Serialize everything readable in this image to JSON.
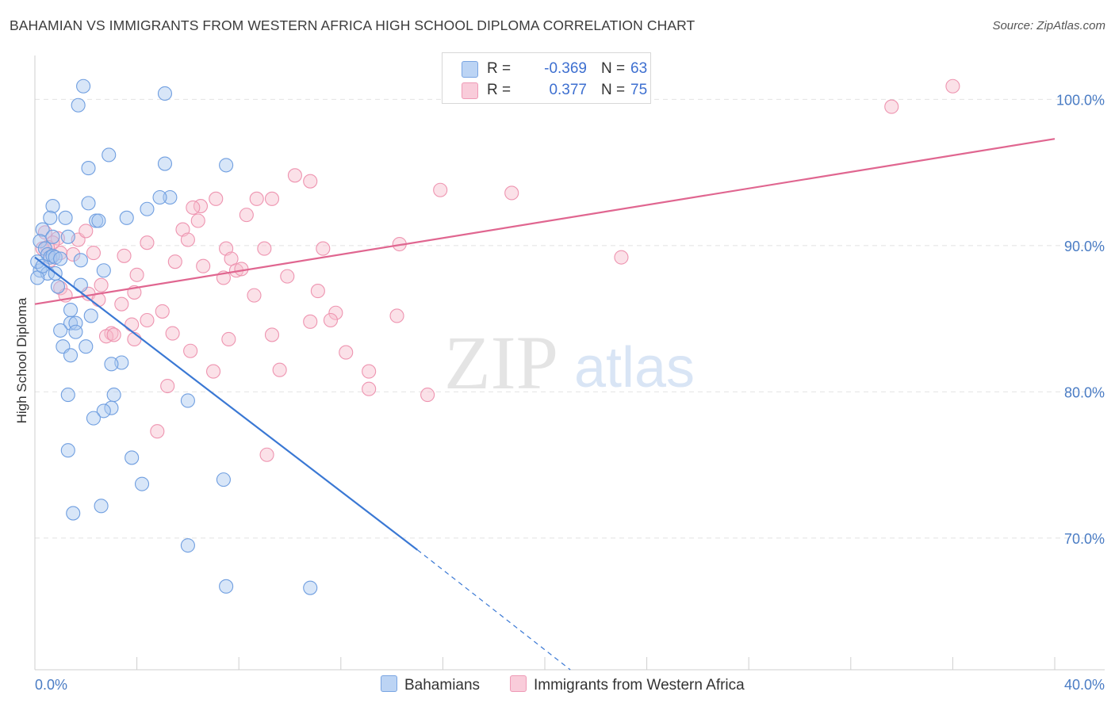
{
  "header": {
    "title": "BAHAMIAN VS IMMIGRANTS FROM WESTERN AFRICA HIGH SCHOOL DIPLOMA CORRELATION CHART",
    "source": "Source: ZipAtlas.com"
  },
  "watermark": {
    "zip": "ZIP",
    "atlas": "atlas"
  },
  "legend_top": [
    {
      "r_label": "R =",
      "r_value": "-0.369",
      "n_label": "N =",
      "n_value": "63"
    },
    {
      "r_label": "R =",
      "r_value": "0.377",
      "n_label": "N =",
      "n_value": "75"
    }
  ],
  "legend_bottom": {
    "series_a": "Bahamians",
    "series_b": "Immigrants from Western Africa"
  },
  "colors": {
    "blue_fill": "#a9c8f0",
    "blue_stroke": "#6f9ee0",
    "blue_line": "#3a78d4",
    "pink_fill": "#f6bccd",
    "pink_stroke": "#ee94b0",
    "pink_line": "#e06690",
    "tick_text": "#4a7cc4",
    "grid": "#e2e2e2"
  },
  "chart_data": {
    "type": "scatter",
    "title": "BAHAMIAN VS IMMIGRANTS FROM WESTERN AFRICA HIGH SCHOOL DIPLOMA CORRELATION CHART",
    "xlabel": "",
    "ylabel": "High School Diploma",
    "xlim": [
      0,
      40
    ],
    "ylim": [
      61,
      103
    ],
    "x_ticks": [
      "0.0%",
      "40.0%"
    ],
    "y_ticks": [
      {
        "value": 100,
        "label": "100.0%"
      },
      {
        "value": 90,
        "label": "90.0%"
      },
      {
        "value": 80,
        "label": "80.0%"
      },
      {
        "value": 70,
        "label": "70.0%"
      }
    ],
    "grid": "horizontal dashed",
    "legend": "top-center and bottom",
    "series": [
      {
        "name": "Bahamians",
        "color": "#a9c8f0",
        "points": [
          [
            1.9,
            100.9
          ],
          [
            5.1,
            100.4
          ],
          [
            1.7,
            99.6
          ],
          [
            2.9,
            96.2
          ],
          [
            2.1,
            95.3
          ],
          [
            5.1,
            95.6
          ],
          [
            7.5,
            95.5
          ],
          [
            5.3,
            93.3
          ],
          [
            4.9,
            93.3
          ],
          [
            2.1,
            92.9
          ],
          [
            0.7,
            92.7
          ],
          [
            4.4,
            92.5
          ],
          [
            0.6,
            91.9
          ],
          [
            1.2,
            91.9
          ],
          [
            3.6,
            91.9
          ],
          [
            2.4,
            91.7
          ],
          [
            2.5,
            91.7
          ],
          [
            0.3,
            91.1
          ],
          [
            0.2,
            90.3
          ],
          [
            0.7,
            90.6
          ],
          [
            1.3,
            90.6
          ],
          [
            0.4,
            89.8
          ],
          [
            0.5,
            89.4
          ],
          [
            0.6,
            89.2
          ],
          [
            0.7,
            89.3
          ],
          [
            0.8,
            89.2
          ],
          [
            1.0,
            89.1
          ],
          [
            1.8,
            89.0
          ],
          [
            0.2,
            88.3
          ],
          [
            0.5,
            88.1
          ],
          [
            0.8,
            88.1
          ],
          [
            2.7,
            88.3
          ],
          [
            0.1,
            87.8
          ],
          [
            0.9,
            87.2
          ],
          [
            1.8,
            87.3
          ],
          [
            1.4,
            85.6
          ],
          [
            2.2,
            85.2
          ],
          [
            1.4,
            84.7
          ],
          [
            1.6,
            84.7
          ],
          [
            1.0,
            84.2
          ],
          [
            1.6,
            84.1
          ],
          [
            1.1,
            83.1
          ],
          [
            2.0,
            83.1
          ],
          [
            1.4,
            82.5
          ],
          [
            3.4,
            82.0
          ],
          [
            3.0,
            81.9
          ],
          [
            1.3,
            79.8
          ],
          [
            3.1,
            79.8
          ],
          [
            6.0,
            79.4
          ],
          [
            3.0,
            78.9
          ],
          [
            2.7,
            78.7
          ],
          [
            2.3,
            78.2
          ],
          [
            1.3,
            76.0
          ],
          [
            3.8,
            75.5
          ],
          [
            4.2,
            73.7
          ],
          [
            7.4,
            74.0
          ],
          [
            2.6,
            72.2
          ],
          [
            1.5,
            71.7
          ],
          [
            6.0,
            69.5
          ],
          [
            7.5,
            66.7
          ],
          [
            10.8,
            66.6
          ],
          [
            0.1,
            88.9
          ],
          [
            0.3,
            88.6
          ]
        ]
      },
      {
        "name": "Immigrants from Western Africa",
        "color": "#f6bccd",
        "points": [
          [
            16.9,
            100.9
          ],
          [
            36.0,
            100.9
          ],
          [
            33.6,
            99.5
          ],
          [
            10.2,
            94.8
          ],
          [
            10.8,
            94.4
          ],
          [
            15.9,
            93.8
          ],
          [
            18.7,
            93.6
          ],
          [
            6.5,
            92.7
          ],
          [
            7.1,
            93.2
          ],
          [
            8.7,
            93.2
          ],
          [
            9.3,
            93.2
          ],
          [
            6.2,
            92.6
          ],
          [
            8.3,
            92.1
          ],
          [
            6.4,
            91.7
          ],
          [
            5.8,
            91.1
          ],
          [
            0.4,
            90.9
          ],
          [
            0.9,
            90.5
          ],
          [
            0.7,
            90.2
          ],
          [
            1.7,
            90.4
          ],
          [
            6.0,
            90.4
          ],
          [
            4.4,
            90.2
          ],
          [
            14.3,
            90.1
          ],
          [
            0.5,
            89.9
          ],
          [
            1.0,
            89.5
          ],
          [
            1.5,
            89.4
          ],
          [
            2.3,
            89.5
          ],
          [
            7.5,
            89.8
          ],
          [
            9.0,
            89.8
          ],
          [
            11.3,
            89.8
          ],
          [
            3.5,
            89.3
          ],
          [
            7.7,
            89.1
          ],
          [
            23.0,
            89.2
          ],
          [
            5.5,
            88.9
          ],
          [
            6.6,
            88.6
          ],
          [
            7.9,
            88.3
          ],
          [
            8.1,
            88.4
          ],
          [
            4.0,
            88.0
          ],
          [
            9.9,
            87.9
          ],
          [
            1.0,
            87.1
          ],
          [
            2.6,
            87.3
          ],
          [
            7.4,
            87.8
          ],
          [
            2.1,
            86.7
          ],
          [
            1.2,
            86.6
          ],
          [
            3.9,
            86.8
          ],
          [
            11.1,
            86.9
          ],
          [
            8.6,
            86.6
          ],
          [
            2.5,
            86.3
          ],
          [
            3.4,
            86.0
          ],
          [
            5.0,
            85.5
          ],
          [
            11.8,
            85.4
          ],
          [
            14.2,
            85.2
          ],
          [
            11.6,
            84.9
          ],
          [
            10.8,
            84.8
          ],
          [
            4.4,
            84.9
          ],
          [
            3.8,
            84.6
          ],
          [
            3.0,
            84.0
          ],
          [
            5.4,
            84.0
          ],
          [
            3.9,
            83.6
          ],
          [
            2.8,
            83.8
          ],
          [
            9.3,
            83.9
          ],
          [
            7.6,
            83.6
          ],
          [
            6.1,
            82.8
          ],
          [
            12.2,
            82.7
          ],
          [
            13.1,
            81.4
          ],
          [
            9.6,
            81.5
          ],
          [
            7.0,
            81.4
          ],
          [
            13.1,
            80.2
          ],
          [
            5.2,
            80.4
          ],
          [
            15.4,
            79.8
          ],
          [
            4.8,
            77.3
          ],
          [
            9.1,
            75.7
          ],
          [
            0.3,
            89.8
          ],
          [
            0.6,
            89.0
          ],
          [
            2.0,
            91.0
          ],
          [
            3.1,
            83.9
          ]
        ]
      }
    ],
    "trend_lines": [
      {
        "series": "Bahamians",
        "from": [
          0,
          89.2
        ],
        "to": [
          15.0,
          69.2
        ],
        "dashed_to": [
          21.0,
          61.0
        ]
      },
      {
        "series": "Immigrants from Western Africa",
        "from": [
          0,
          86.0
        ],
        "to": [
          40,
          97.3
        ]
      }
    ]
  }
}
